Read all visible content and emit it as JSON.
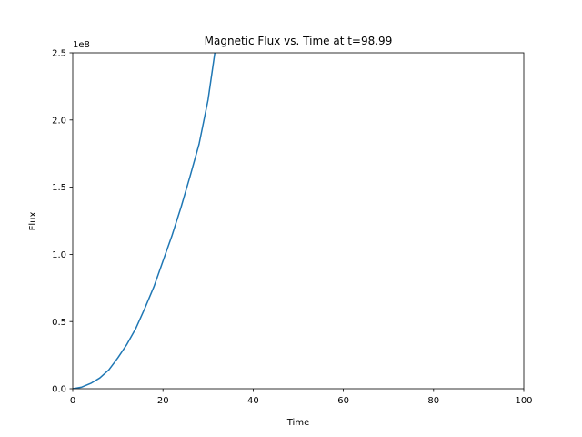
{
  "chart_data": {
    "type": "line",
    "title": "Magnetic Flux vs. Time at t=98.99",
    "xlabel": "Time",
    "ylabel": "Flux",
    "y_offset_text": "1e8",
    "xlim": [
      0,
      100
    ],
    "ylim": [
      0,
      2.5
    ],
    "y_multiplier": 100000000,
    "grid": false,
    "x_ticks": [
      0,
      20,
      40,
      60,
      80,
      100
    ],
    "x_tick_labels": [
      "0",
      "20",
      "40",
      "60",
      "80",
      "100"
    ],
    "y_ticks": [
      0,
      0.5,
      1.0,
      1.5,
      2.0,
      2.5
    ],
    "y_tick_labels": [
      "0.0",
      "0.5",
      "1.0",
      "1.5",
      "2.0",
      "2.5"
    ],
    "series": [
      {
        "color": "#1f77b4",
        "x": [
          0,
          2,
          4,
          6,
          8,
          10,
          12,
          14,
          16,
          18,
          20,
          22,
          24,
          26,
          28,
          30,
          31.5
        ],
        "y": [
          0,
          0.012,
          0.04,
          0.08,
          0.14,
          0.23,
          0.33,
          0.45,
          0.6,
          0.76,
          0.95,
          1.14,
          1.35,
          1.58,
          1.82,
          2.15,
          2.5
        ]
      }
    ]
  }
}
